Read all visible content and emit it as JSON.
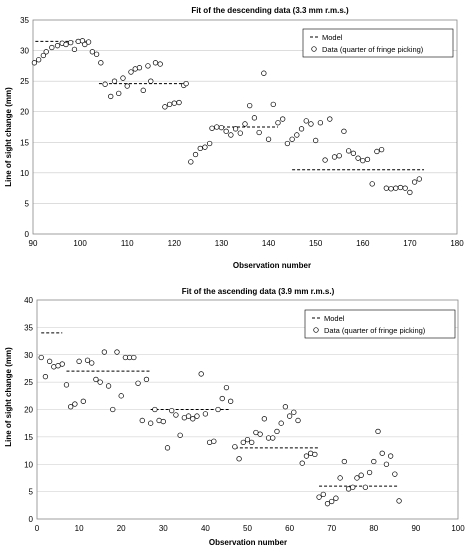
{
  "chart_data": [
    {
      "type": "scatter",
      "title": "Fit of the descending data (3.3 mm r.m.s.)",
      "xlabel": "Observation number",
      "ylabel": "Line of sight change (mm)",
      "xlim": [
        90,
        180
      ],
      "ylim": [
        0,
        35
      ],
      "xticks": [
        "90",
        "100",
        "110",
        "120",
        "130",
        "140",
        "150",
        "160",
        "170",
        "180"
      ],
      "yticks": [
        "0",
        "5",
        "10",
        "15",
        "20",
        "25",
        "30",
        "35"
      ],
      "grid": "horizontal",
      "legend_position": "top-right",
      "series": [
        {
          "name": "Model",
          "style": "dashed-line",
          "segments": [
            {
              "x": [
                90.5,
                102
              ],
              "y": 31.5
            },
            {
              "x": [
                104,
                122
              ],
              "y": 24.6
            },
            {
              "x": [
                128,
                142
              ],
              "y": 17.5
            },
            {
              "x": [
                145,
                173
              ],
              "y": 10.5
            }
          ]
        },
        {
          "name": "Data (quarter of fringe picking)",
          "style": "open-circle",
          "x": [
            90.3,
            91.2,
            92.2,
            92.8,
            94.0,
            95.2,
            96.2,
            97.0,
            98.0,
            98.8,
            99.6,
            100.5,
            101.0,
            101.8,
            102.6,
            103.5,
            104.4,
            105.3,
            106.5,
            107.3,
            108.2,
            109.1,
            110.0,
            110.8,
            111.7,
            112.6,
            113.4,
            114.4,
            115.0,
            116.0,
            117.0,
            118.0,
            119.0,
            120.0,
            121.0,
            122.0,
            122.5,
            123.5,
            124.5,
            125.5,
            126.5,
            127.5,
            128.0,
            129.0,
            130.0,
            131.0,
            132.0,
            133.0,
            134.0,
            135.0,
            136.0,
            137.0,
            138.0,
            139.0,
            140.0,
            141.0,
            142.0,
            143.0,
            144.0,
            145.0,
            146.0,
            147.0,
            148.0,
            149.0,
            150.0,
            151.0,
            152.0,
            153.0,
            154.0,
            155.0,
            156.0,
            157.0,
            158.0,
            159.0,
            160.0,
            161.0,
            162.0,
            163.0,
            164.0,
            165.0,
            166.0,
            167.0,
            168.0,
            169.0,
            170.0,
            171.0,
            172.0
          ],
          "y": [
            28.0,
            28.5,
            29.2,
            29.8,
            30.5,
            30.8,
            31.2,
            31.0,
            31.3,
            30.2,
            31.5,
            31.6,
            31.0,
            31.4,
            29.8,
            29.4,
            28.0,
            24.5,
            22.5,
            25.0,
            23.0,
            25.5,
            24.2,
            26.5,
            27.0,
            27.2,
            23.5,
            27.5,
            25.0,
            28.0,
            27.8,
            20.8,
            21.2,
            21.4,
            21.5,
            24.3,
            24.6,
            11.8,
            13.0,
            14.0,
            14.2,
            14.8,
            17.3,
            17.5,
            17.4,
            16.8,
            16.2,
            17.2,
            16.5,
            18.0,
            21.0,
            19.0,
            16.6,
            26.3,
            15.5,
            21.2,
            18.2,
            18.8,
            14.8,
            15.5,
            16.2,
            17.2,
            18.5,
            18.0,
            15.3,
            18.2,
            12.1,
            18.8,
            12.6,
            12.8,
            16.8,
            13.6,
            13.2,
            12.4,
            12.0,
            12.2,
            8.2,
            13.5,
            13.8,
            7.5,
            7.4,
            7.5,
            7.6,
            7.5,
            6.8,
            8.5,
            9.0
          ]
        }
      ]
    },
    {
      "type": "scatter",
      "title": "Fit of the ascending data (3.9 mm r.m.s.)",
      "xlabel": "Observation number",
      "ylabel": "Line of sight change (mm)",
      "xlim": [
        0,
        100
      ],
      "ylim": [
        0,
        40
      ],
      "xticks": [
        "0",
        "10",
        "20",
        "30",
        "40",
        "50",
        "60",
        "70",
        "80",
        "90",
        "100"
      ],
      "yticks": [
        "0",
        "5",
        "10",
        "15",
        "20",
        "25",
        "30",
        "35",
        "40"
      ],
      "grid": "horizontal",
      "legend_position": "top-right",
      "series": [
        {
          "name": "Model",
          "style": "dashed-line",
          "segments": [
            {
              "x": [
                1,
                6
              ],
              "y": 34.0
            },
            {
              "x": [
                7,
                27
              ],
              "y": 27.0
            },
            {
              "x": [
                27,
                46
              ],
              "y": 20.0
            },
            {
              "x": [
                47,
                67
              ],
              "y": 13.0
            },
            {
              "x": [
                67,
                86
              ],
              "y": 6.0
            }
          ]
        },
        {
          "name": "Data (quarter of fringe picking)",
          "style": "open-circle",
          "x": [
            1.0,
            2.0,
            3.0,
            4.0,
            5.0,
            6.0,
            7.0,
            8.0,
            9.0,
            10.0,
            11.0,
            12.0,
            13.0,
            14.0,
            15.0,
            16.0,
            17.0,
            18.0,
            19.0,
            20.0,
            21.0,
            22.0,
            23.0,
            24.0,
            25.0,
            26.0,
            27.0,
            28.0,
            29.0,
            30.0,
            31.0,
            32.0,
            33.0,
            34.0,
            35.0,
            36.0,
            37.0,
            38.0,
            39.0,
            40.0,
            41.0,
            42.0,
            43.0,
            44.0,
            45.0,
            46.0,
            47.0,
            48.0,
            49.0,
            50.0,
            51.0,
            52.0,
            53.0,
            54.0,
            55.0,
            56.0,
            57.0,
            58.0,
            59.0,
            60.0,
            61.0,
            62.0,
            63.0,
            64.0,
            65.0,
            66.0,
            67.0,
            68.0,
            69.0,
            70.0,
            71.0,
            72.0,
            73.0,
            74.0,
            75.0,
            76.0,
            77.0,
            78.0,
            79.0,
            80.0,
            81.0,
            82.0,
            83.0,
            84.0,
            85.0,
            86.0
          ],
          "y": [
            29.5,
            26.0,
            28.8,
            27.8,
            28.0,
            28.3,
            24.5,
            20.5,
            21.0,
            28.8,
            21.5,
            29.0,
            28.5,
            25.5,
            25.0,
            30.5,
            24.3,
            20.0,
            30.5,
            22.5,
            29.5,
            29.5,
            29.5,
            24.8,
            18.0,
            25.5,
            17.5,
            20.0,
            18.0,
            17.8,
            13.0,
            19.8,
            19.0,
            15.3,
            18.5,
            18.8,
            18.3,
            18.8,
            26.5,
            19.2,
            14.0,
            14.2,
            20.0,
            22.0,
            24.0,
            21.5,
            13.2,
            11.0,
            14.0,
            14.5,
            14.0,
            15.8,
            15.5,
            18.3,
            14.8,
            14.8,
            16.0,
            17.5,
            20.5,
            18.8,
            19.5,
            18.0,
            10.2,
            11.5,
            12.0,
            11.8,
            4.0,
            4.5,
            2.8,
            3.2,
            3.8,
            7.5,
            10.5,
            5.5,
            5.8,
            7.5,
            8.0,
            5.8,
            8.5,
            10.5,
            16.0,
            12.0,
            10.0,
            11.5,
            8.2,
            3.3
          ]
        }
      ]
    }
  ]
}
